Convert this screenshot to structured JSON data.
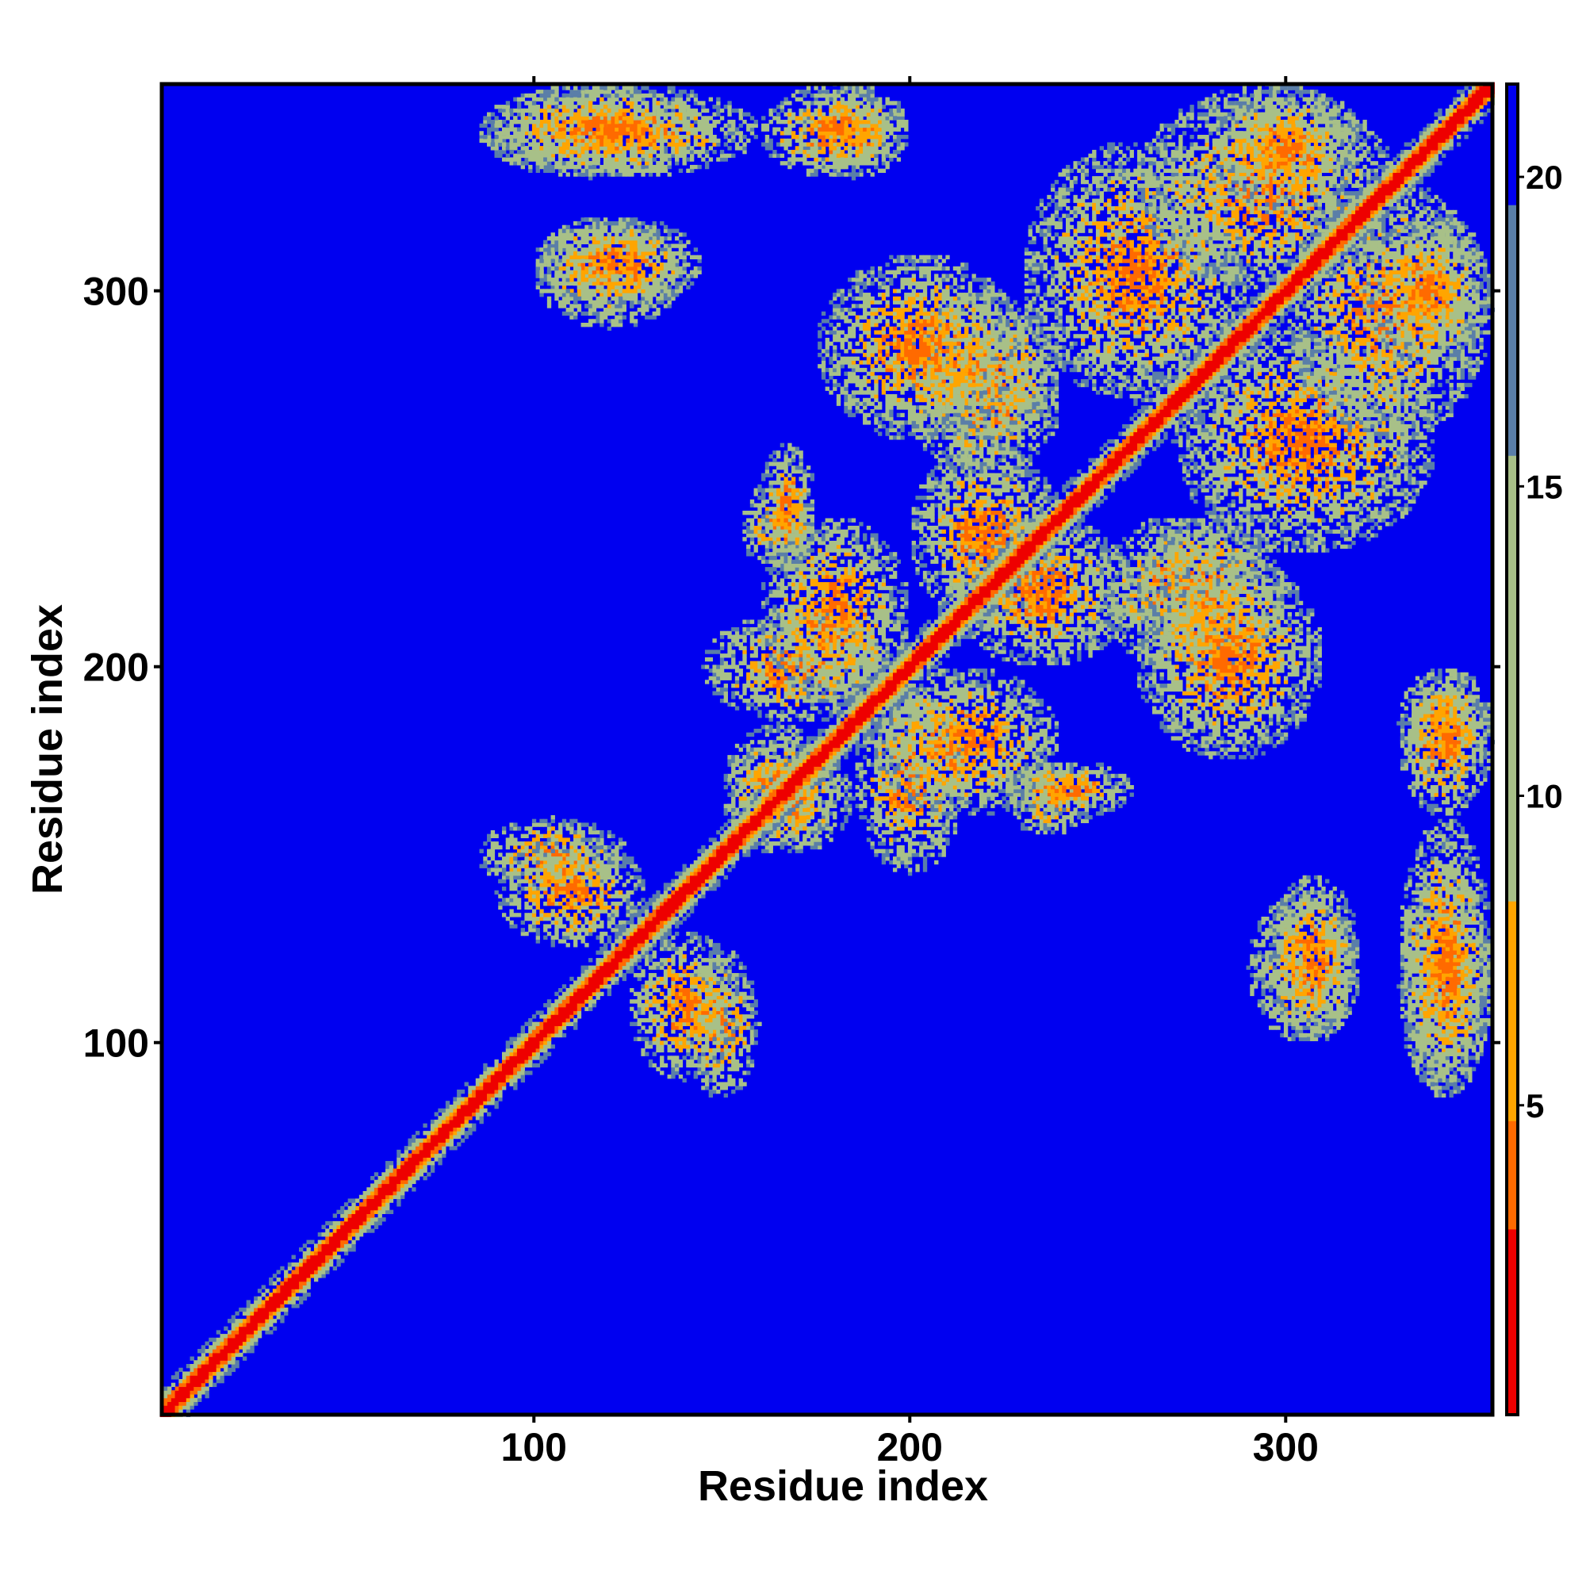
{
  "chart_data": {
    "type": "heatmap",
    "title": "",
    "xlabel": "Residue index",
    "ylabel": "Residue index",
    "xlim": [
      1,
      355
    ],
    "ylim": [
      1,
      355
    ],
    "x_ticks": [
      "100",
      "200",
      "300"
    ],
    "y_ticks": [
      "100",
      "200",
      "300"
    ],
    "x_tick_values": [
      100,
      200,
      300
    ],
    "y_tick_values": [
      100,
      200,
      300
    ],
    "colorbar": {
      "range": [
        0,
        21.5
      ],
      "ticks": [
        "5",
        "10",
        "15",
        "20"
      ],
      "tick_values": [
        5,
        10,
        15,
        20
      ],
      "colors": {
        "low": "#ee0000",
        "mid_low": "#ff6a00",
        "mid": "#ffa500",
        "mid_high": "#a8c088",
        "high": "#5a7ea8",
        "background": "#0000f0"
      }
    },
    "features": {
      "diagonal": {
        "from": [
          1,
          1
        ],
        "to": [
          355,
          355
        ]
      },
      "contact_regions": [
        {
          "x": [
            85,
            125
          ],
          "y": [
            140,
            160
          ]
        },
        {
          "x": [
            125,
            155
          ],
          "y": [
            90,
            130
          ]
        },
        {
          "x": [
            150,
            185
          ],
          "y": [
            150,
            180
          ]
        },
        {
          "x": [
            145,
            195
          ],
          "y": [
            185,
            215
          ]
        },
        {
          "x": [
            155,
            175
          ],
          "y": [
            225,
            250
          ]
        },
        {
          "x": [
            190,
            240
          ],
          "y": [
            160,
            200
          ]
        },
        {
          "x": [
            210,
            260
          ],
          "y": [
            200,
            240
          ]
        },
        {
          "x": [
            200,
            240
          ],
          "y": [
            250,
            290
          ]
        },
        {
          "x": [
            225,
            260
          ],
          "y": [
            160,
            175
          ]
        },
        {
          "x": [
            260,
            300
          ],
          "y": [
            200,
            240
          ]
        },
        {
          "x": [
            290,
            320
          ],
          "y": [
            100,
            140
          ]
        },
        {
          "x": [
            330,
            355
          ],
          "y": [
            85,
            145
          ]
        },
        {
          "x": [
            330,
            355
          ],
          "y": [
            170,
            200
          ]
        },
        {
          "x": [
            270,
            340
          ],
          "y": [
            230,
            290
          ]
        },
        {
          "x": [
            260,
            330
          ],
          "y": [
            300,
            355
          ]
        },
        {
          "x": [
            85,
            160
          ],
          "y": [
            330,
            355
          ]
        },
        {
          "x": [
            160,
            200
          ],
          "y": [
            330,
            355
          ]
        },
        {
          "x": [
            100,
            145
          ],
          "y": [
            295,
            320
          ]
        },
        {
          "x": [
            320,
            355
          ],
          "y": [
            280,
            320
          ]
        },
        {
          "x": [
            175,
            230
          ],
          "y": [
            260,
            310
          ]
        }
      ]
    }
  }
}
